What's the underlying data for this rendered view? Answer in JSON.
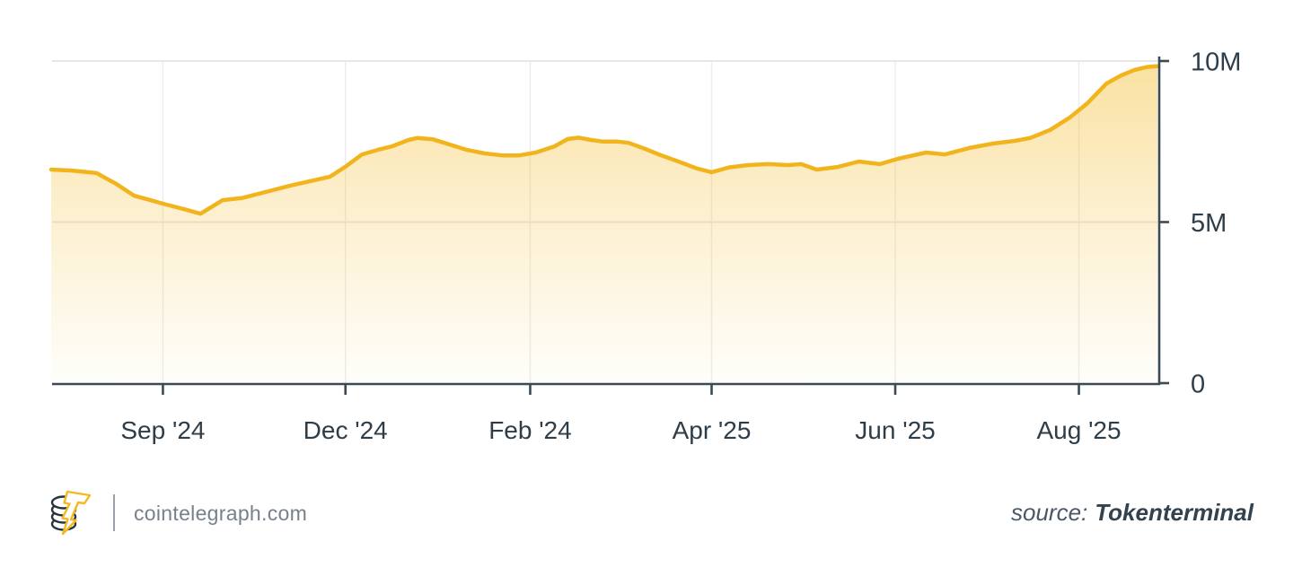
{
  "page": {
    "background": "#ffffff"
  },
  "footer": {
    "site": "cointelegraph.com",
    "source_label": "source:",
    "source_name": "Tokenterminal",
    "icons": [
      "coin-stack-icon",
      "lightning-bolt-icon"
    ],
    "divider_color": "#9aa1a9",
    "site_text_color": "#78818b",
    "source_color": "#33424f"
  },
  "chart_data": {
    "type": "area",
    "title": "",
    "unit": "M",
    "ylim_millions": [
      0,
      10
    ],
    "grid": true,
    "legend": "none",
    "line_color": "#F2B41D",
    "axis_color": "#3C4A56",
    "grid_color": "#E7E7E7",
    "vgrid_color": "#EDEDED",
    "label_color": "#2F3D49",
    "fill_stops": [
      [
        "0%",
        "rgba(244,184,30,0.42)"
      ],
      [
        "45%",
        "rgba(244,184,30,0.22)"
      ],
      [
        "100%",
        "rgba(244,184,30,0.02)"
      ]
    ],
    "x_ticks": [
      {
        "label": "Sep '24",
        "pos": 0.101
      },
      {
        "label": "Dec '24",
        "pos": 0.266
      },
      {
        "label": "Feb '24",
        "pos": 0.433
      },
      {
        "label": "Apr '25",
        "pos": 0.597
      },
      {
        "label": "Jun '25",
        "pos": 0.763
      },
      {
        "label": "Aug '25",
        "pos": 0.929
      }
    ],
    "y_ticks": [
      {
        "label": "0",
        "value": 0
      },
      {
        "label": "5M",
        "value": 5
      },
      {
        "label": "10M",
        "value": 10
      }
    ],
    "series": [
      {
        "name": "value-millions",
        "points": [
          [
            0.0,
            6.63
          ],
          [
            0.019,
            6.6
          ],
          [
            0.041,
            6.52
          ],
          [
            0.059,
            6.18
          ],
          [
            0.075,
            5.82
          ],
          [
            0.092,
            5.66
          ],
          [
            0.101,
            5.57
          ],
          [
            0.12,
            5.4
          ],
          [
            0.135,
            5.26
          ],
          [
            0.155,
            5.68
          ],
          [
            0.173,
            5.75
          ],
          [
            0.197,
            5.96
          ],
          [
            0.216,
            6.13
          ],
          [
            0.234,
            6.27
          ],
          [
            0.252,
            6.41
          ],
          [
            0.266,
            6.72
          ],
          [
            0.281,
            7.1
          ],
          [
            0.295,
            7.24
          ],
          [
            0.308,
            7.35
          ],
          [
            0.323,
            7.55
          ],
          [
            0.331,
            7.61
          ],
          [
            0.345,
            7.57
          ],
          [
            0.36,
            7.41
          ],
          [
            0.376,
            7.24
          ],
          [
            0.392,
            7.13
          ],
          [
            0.408,
            7.07
          ],
          [
            0.423,
            7.07
          ],
          [
            0.438,
            7.16
          ],
          [
            0.455,
            7.35
          ],
          [
            0.467,
            7.58
          ],
          [
            0.477,
            7.62
          ],
          [
            0.488,
            7.55
          ],
          [
            0.499,
            7.5
          ],
          [
            0.512,
            7.5
          ],
          [
            0.522,
            7.46
          ],
          [
            0.537,
            7.27
          ],
          [
            0.55,
            7.09
          ],
          [
            0.567,
            6.88
          ],
          [
            0.583,
            6.67
          ],
          [
            0.597,
            6.55
          ],
          [
            0.613,
            6.7
          ],
          [
            0.63,
            6.77
          ],
          [
            0.648,
            6.8
          ],
          [
            0.666,
            6.77
          ],
          [
            0.678,
            6.8
          ],
          [
            0.692,
            6.63
          ],
          [
            0.711,
            6.71
          ],
          [
            0.73,
            6.88
          ],
          [
            0.749,
            6.8
          ],
          [
            0.765,
            6.96
          ],
          [
            0.779,
            7.07
          ],
          [
            0.791,
            7.16
          ],
          [
            0.808,
            7.1
          ],
          [
            0.83,
            7.3
          ],
          [
            0.852,
            7.44
          ],
          [
            0.871,
            7.52
          ],
          [
            0.885,
            7.61
          ],
          [
            0.903,
            7.86
          ],
          [
            0.921,
            8.25
          ],
          [
            0.937,
            8.7
          ],
          [
            0.954,
            9.3
          ],
          [
            0.967,
            9.55
          ],
          [
            0.979,
            9.72
          ],
          [
            0.99,
            9.81
          ],
          [
            1.0,
            9.84
          ]
        ]
      }
    ]
  }
}
